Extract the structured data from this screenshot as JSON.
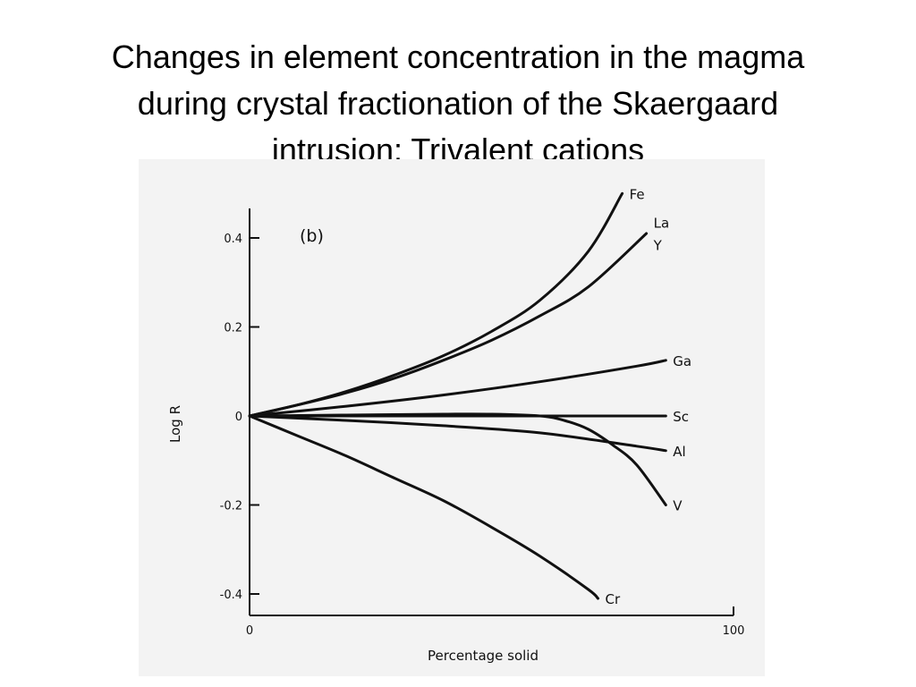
{
  "slide": {
    "title_lines": [
      "Changes in element concentration in the magma",
      "during crystal fractionation of the Skaergaard",
      "intrusion: Trivalent cations"
    ]
  },
  "chart_data": {
    "type": "line",
    "panel_label": "(b)",
    "xlabel": "Percentage solid",
    "ylabel": "Log R",
    "xlim": [
      0,
      100
    ],
    "ylim": [
      -0.45,
      0.47
    ],
    "x_ticks": [
      {
        "value": 0,
        "label": "0"
      },
      {
        "value": 100,
        "label": "100"
      }
    ],
    "y_ticks": [
      {
        "value": 0.4,
        "label": "0.4"
      },
      {
        "value": 0.2,
        "label": "0.2"
      },
      {
        "value": 0,
        "label": "0"
      },
      {
        "value": -0.2,
        "label": "-0.2"
      },
      {
        "value": -0.4,
        "label": "-0.4"
      }
    ],
    "grid": false,
    "legend": "labels at line ends",
    "line_color": "#111111",
    "series": [
      {
        "labels": [
          "Fe"
        ],
        "x": [
          0,
          10,
          20,
          30,
          40,
          50,
          60,
          70,
          77
        ],
        "y": [
          0,
          0.025,
          0.055,
          0.092,
          0.135,
          0.19,
          0.26,
          0.37,
          0.5
        ]
      },
      {
        "labels": [
          "La",
          "Y"
        ],
        "x": [
          0,
          10,
          20,
          30,
          40,
          50,
          60,
          70,
          82
        ],
        "y": [
          0,
          0.025,
          0.052,
          0.085,
          0.125,
          0.17,
          0.225,
          0.29,
          0.41
        ]
      },
      {
        "labels": [
          "Ga"
        ],
        "x": [
          0,
          20,
          40,
          60,
          80,
          86
        ],
        "y": [
          0,
          0.022,
          0.047,
          0.077,
          0.112,
          0.125
        ]
      },
      {
        "labels": [
          "Sc"
        ],
        "x": [
          0,
          86
        ],
        "y": [
          0,
          0
        ]
      },
      {
        "labels": [
          "Al"
        ],
        "x": [
          0,
          20,
          40,
          60,
          80,
          86
        ],
        "y": [
          0,
          -0.01,
          -0.022,
          -0.038,
          -0.068,
          -0.078
        ]
      },
      {
        "labels": [
          "V"
        ],
        "x": [
          0,
          20,
          40,
          50,
          60,
          65,
          70,
          75,
          80,
          86
        ],
        "y": [
          0,
          0.002,
          0.004,
          0.004,
          0,
          -0.01,
          -0.03,
          -0.065,
          -0.11,
          -0.2
        ]
      },
      {
        "labels": [
          "Cr"
        ],
        "x": [
          0,
          10,
          20,
          30,
          40,
          50,
          60,
          70,
          72
        ],
        "y": [
          0,
          -0.045,
          -0.09,
          -0.14,
          -0.19,
          -0.25,
          -0.315,
          -0.39,
          -0.41
        ]
      }
    ]
  }
}
